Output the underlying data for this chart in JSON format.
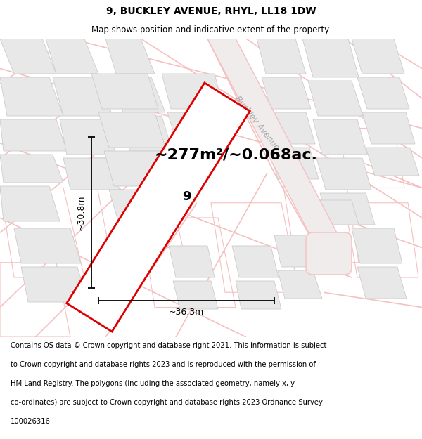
{
  "title": "9, BUCKLEY AVENUE, RHYL, LL18 1DW",
  "subtitle": "Map shows position and indicative extent of the property.",
  "area_text": "~277m²/~0.068ac.",
  "label_number": "9",
  "dim_width": "~36.3m",
  "dim_height": "~30.8m",
  "road_label": "Buckley Avenue",
  "footer_lines": [
    "Contains OS data © Crown copyright and database right 2021. This information is subject",
    "to Crown copyright and database rights 2023 and is reproduced with the permission of",
    "HM Land Registry. The polygons (including the associated geometry, namely x, y",
    "co-ordinates) are subject to Crown copyright and database rights 2023 Ordnance Survey",
    "100026316."
  ],
  "map_bg": "#f7f3f3",
  "plot_color": "#dd0000",
  "plot_fill": "#ffffff",
  "building_fill": "#e8e8e8",
  "building_edge": "#cccccc",
  "pink_road_color": "#f5c0c0",
  "pink_outline_color": "#f0b0b0",
  "title_fontsize": 10,
  "subtitle_fontsize": 8.5,
  "area_fontsize": 16,
  "label_fontsize": 13,
  "footer_fontsize": 7.2,
  "dim_fontsize": 9
}
